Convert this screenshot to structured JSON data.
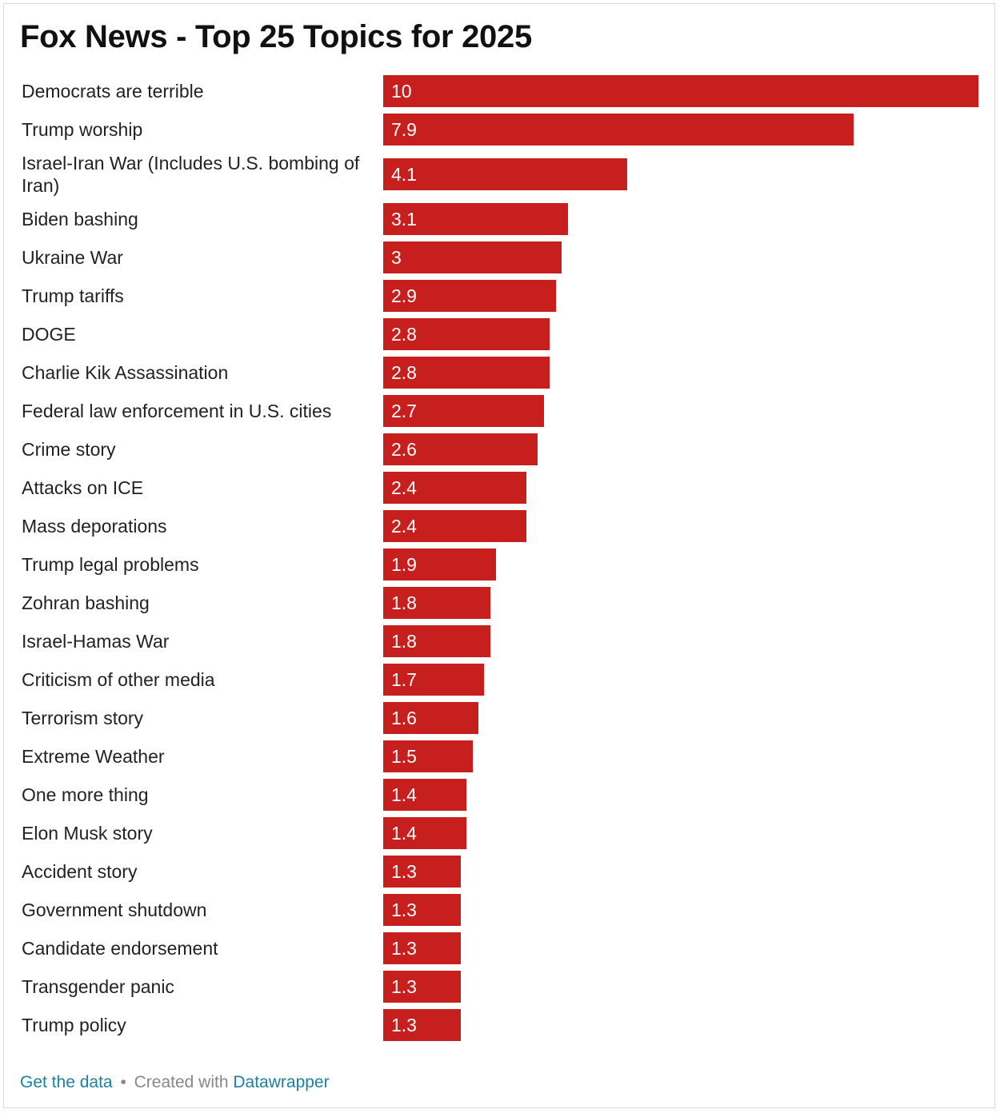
{
  "chart_data": {
    "type": "bar",
    "orientation": "horizontal",
    "title": "Fox News - Top 25 Topics for 2025",
    "xlabel": "",
    "ylabel": "",
    "xlim": [
      0,
      10
    ],
    "bar_color": "#c71e1e",
    "categories": [
      "Democrats are terrible",
      "Trump worship",
      "Israel-Iran War (Includes U.S. bombing of Iran)",
      "Biden bashing",
      "Ukraine War",
      "Trump tariffs",
      "DOGE",
      "Charlie Kik Assassination",
      "Federal law enforcement in U.S. cities",
      "Crime story",
      "Attacks on ICE",
      "Mass deporations",
      "Trump legal problems",
      "Zohran bashing",
      "Israel-Hamas War",
      "Criticism of other media",
      "Terrorism story",
      "Extreme Weather",
      "One more thing",
      "Elon Musk story",
      "Accident story",
      "Government shutdown",
      "Candidate endorsement",
      "Transgender panic",
      "Trump policy"
    ],
    "values": [
      10,
      7.9,
      4.1,
      3.1,
      3,
      2.9,
      2.8,
      2.8,
      2.7,
      2.6,
      2.4,
      2.4,
      1.9,
      1.8,
      1.8,
      1.7,
      1.6,
      1.5,
      1.4,
      1.4,
      1.3,
      1.3,
      1.3,
      1.3,
      1.3
    ]
  },
  "footer": {
    "get_data_label": "Get the data",
    "separator": "•",
    "created_with_label": "Created with",
    "tool_label": "Datawrapper"
  },
  "colors": {
    "link": "#1d81a2",
    "bar": "#c71e1e"
  }
}
